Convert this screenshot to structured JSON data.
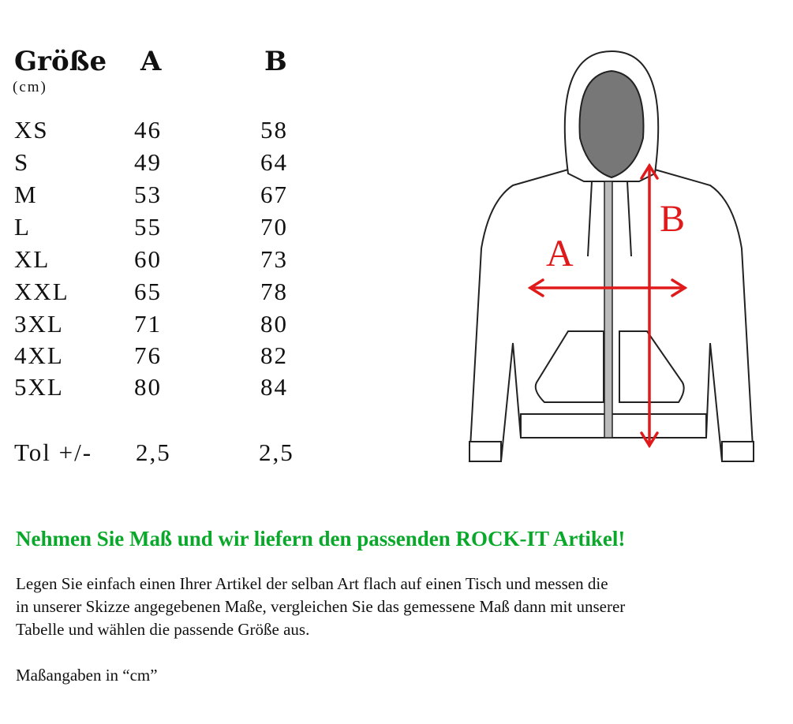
{
  "table": {
    "header": {
      "size": "Größe",
      "unit": "(cm)",
      "a": "A",
      "b": "B"
    },
    "rows": [
      {
        "size": "XS",
        "a": "46",
        "b": "58"
      },
      {
        "size": "S",
        "a": "49",
        "b": "64"
      },
      {
        "size": "M",
        "a": "53",
        "b": "67"
      },
      {
        "size": "L",
        "a": "55",
        "b": "70"
      },
      {
        "size": "XL",
        "a": "60",
        "b": "73"
      },
      {
        "size": "XXL",
        "a": "65",
        "b": "78"
      },
      {
        "size": "3XL",
        "a": "71",
        "b": "80"
      },
      {
        "size": "4XL",
        "a": "76",
        "b": "82"
      },
      {
        "size": "5XL",
        "a": "80",
        "b": "84"
      }
    ],
    "tolerance": {
      "label": "Tol +/-",
      "a": "2,5",
      "b": "2,5"
    }
  },
  "diagram": {
    "label_a": "A",
    "label_b": "B",
    "arrow_color": "#e01a1a"
  },
  "headline": "Nehmen Sie Maß und wir liefern den passenden ROCK-IT Artikel!",
  "headline_color": "#0aa82a",
  "paragraph": "Legen Sie einfach einen Ihrer Artikel der selban Art flach auf einen Tisch und messen die\nin unserer Skizze angegebenen Maße, vergleichen Sie das gemessene Maß dann mit unserer\nTabelle und wählen die passende Größe aus.",
  "note": "Maßangaben in “cm”"
}
